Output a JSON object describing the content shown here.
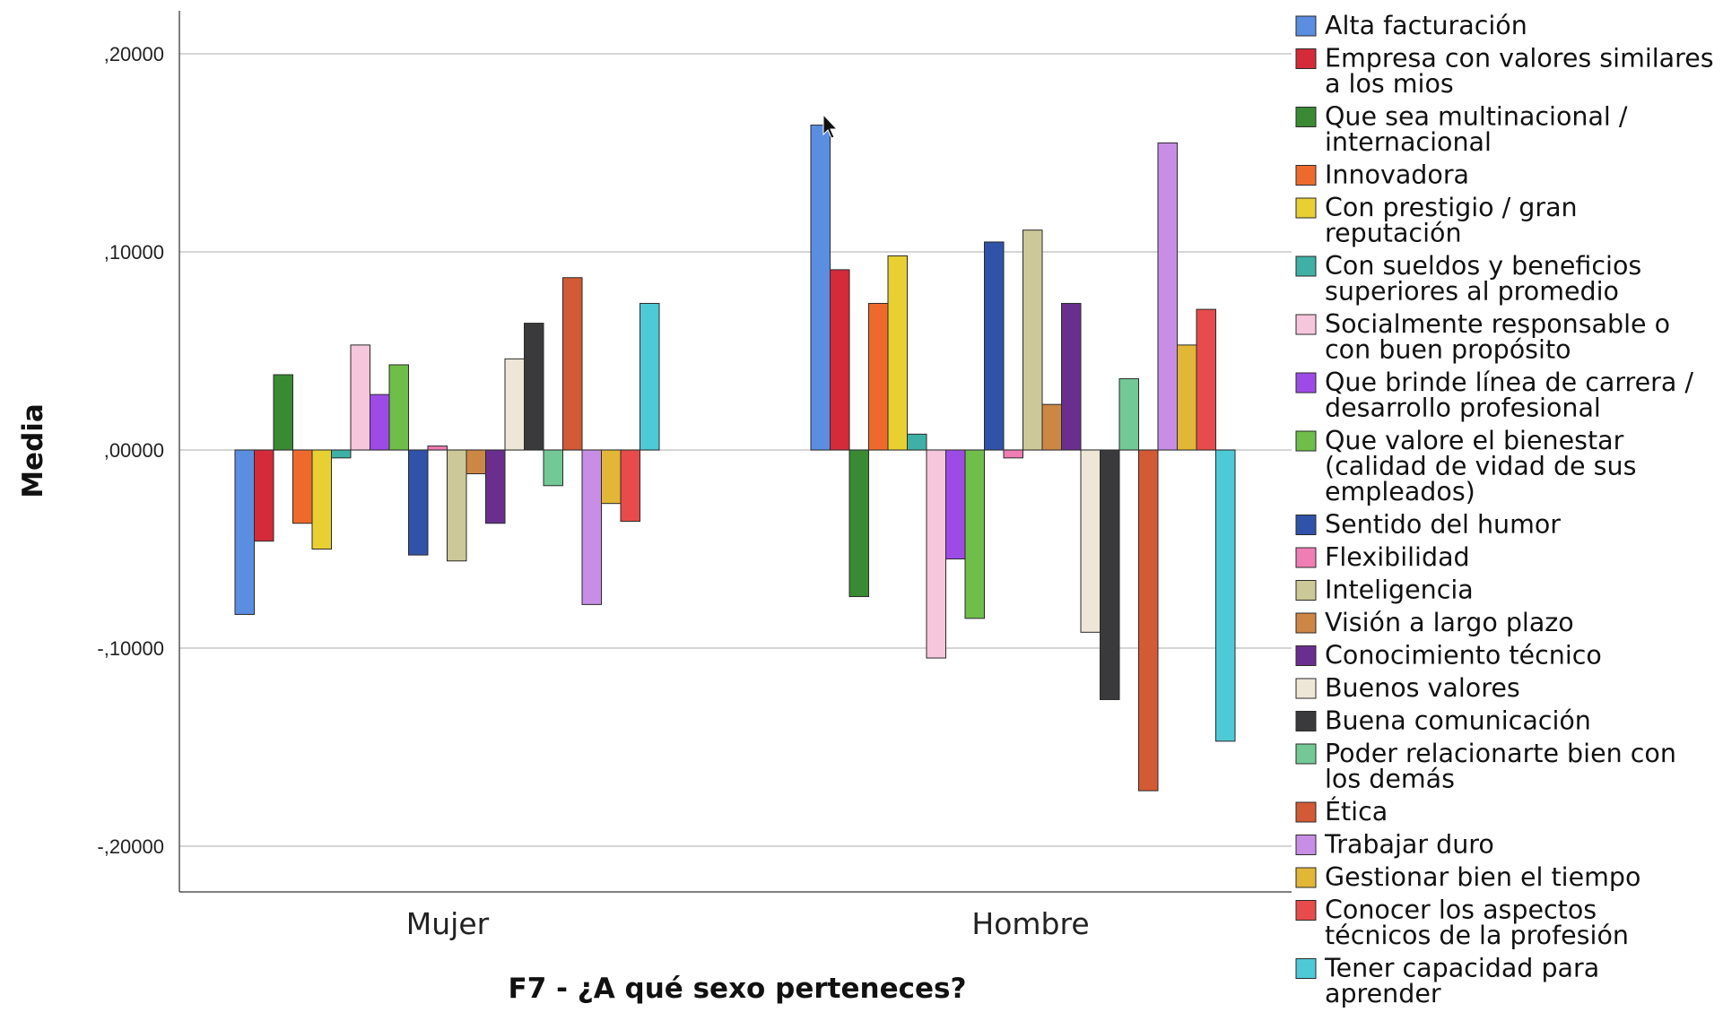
{
  "chart_data": {
    "type": "bar",
    "xlabel": "F7 - ¿A qué sexo perteneces?",
    "ylabel": "Media",
    "categories": [
      "Mujer",
      "Hombre"
    ],
    "ylim": [
      -0.22,
      0.22
    ],
    "yticks": [
      0.2,
      0.1,
      0.0,
      -0.1,
      -0.2
    ],
    "ytick_labels": [
      ",20000",
      ",10000",
      ",00000",
      "-,10000",
      "-,20000"
    ],
    "grid": true,
    "legend_position": "right",
    "series": [
      {
        "name": "Alta facturación",
        "color": "#5b8ee0",
        "values": [
          -0.083,
          0.164
        ]
      },
      {
        "name": "Empresa con valores similares a los mios",
        "color": "#d42a3a",
        "values": [
          -0.046,
          0.091
        ]
      },
      {
        "name": "Que sea multinacional / internacional",
        "color": "#3a8a34",
        "values": [
          0.038,
          -0.074
        ]
      },
      {
        "name": "Innovadora",
        "color": "#ee6a2c",
        "values": [
          -0.037,
          0.074
        ]
      },
      {
        "name": "Con prestigio / gran reputación",
        "color": "#e8d033",
        "values": [
          -0.05,
          0.098
        ]
      },
      {
        "name": "Con sueldos y beneficios superiores al promedio",
        "color": "#3fb0a6",
        "values": [
          -0.004,
          0.008
        ]
      },
      {
        "name": "Socialmente responsable o con buen propósito",
        "color": "#f6c6dc",
        "values": [
          0.053,
          -0.105
        ]
      },
      {
        "name": "Que brinde línea de carrera / desarrollo profesional",
        "color": "#9d4be6",
        "values": [
          0.028,
          -0.055
        ]
      },
      {
        "name": "Que valore el bienestar (calidad de vidad de sus empleados)",
        "color": "#6fbe4a",
        "values": [
          0.043,
          -0.085
        ]
      },
      {
        "name": "Sentido del humor",
        "color": "#3052a8",
        "values": [
          -0.053,
          0.105
        ]
      },
      {
        "name": "Flexibilidad",
        "color": "#ee7eb4",
        "values": [
          0.002,
          -0.004
        ]
      },
      {
        "name": "Inteligencia",
        "color": "#ccc898",
        "values": [
          -0.056,
          0.111
        ]
      },
      {
        "name": "Visión a largo plazo",
        "color": "#cc8745",
        "values": [
          -0.012,
          0.023
        ]
      },
      {
        "name": "Conocimiento técnico",
        "color": "#6a2f8e",
        "values": [
          -0.037,
          0.074
        ]
      },
      {
        "name": "Buenos valores",
        "color": "#eee6d6",
        "values": [
          0.046,
          -0.092
        ]
      },
      {
        "name": "Buena comunicación",
        "color": "#3a3a3c",
        "values": [
          0.064,
          -0.126
        ]
      },
      {
        "name": "Poder relacionarte bien con los demás",
        "color": "#72c996",
        "values": [
          -0.018,
          0.036
        ]
      },
      {
        "name": "Ética",
        "color": "#d25a34",
        "values": [
          0.087,
          -0.172
        ]
      },
      {
        "name": "Trabajar duro",
        "color": "#c88ee6",
        "values": [
          -0.078,
          0.155
        ]
      },
      {
        "name": "Gestionar bien el tiempo",
        "color": "#e2b636",
        "values": [
          -0.027,
          0.053
        ]
      },
      {
        "name": "Conocer los aspectos técnicos de la profesión",
        "color": "#e84b4b",
        "values": [
          -0.036,
          0.071
        ]
      },
      {
        "name": "Tener capacidad para aprender",
        "color": "#4ecad6",
        "values": [
          0.074,
          -0.147
        ]
      }
    ]
  },
  "legend": {
    "entries": [
      {
        "lines": [
          "Alta facturación"
        ]
      },
      {
        "lines": [
          "Empresa con valores similares",
          "a los mios"
        ]
      },
      {
        "lines": [
          "Que sea multinacional /",
          "internacional"
        ]
      },
      {
        "lines": [
          "Innovadora"
        ]
      },
      {
        "lines": [
          "Con prestigio / gran",
          "reputación"
        ]
      },
      {
        "lines": [
          "Con sueldos y beneficios",
          "superiores al promedio"
        ]
      },
      {
        "lines": [
          "Socialmente responsable o",
          "con buen propósito"
        ]
      },
      {
        "lines": [
          "Que brinde línea de carrera /",
          "desarrollo profesional"
        ]
      },
      {
        "lines": [
          "Que valore el bienestar",
          "(calidad de vidad de sus",
          "empleados)"
        ]
      },
      {
        "lines": [
          "Sentido del humor"
        ]
      },
      {
        "lines": [
          "Flexibilidad"
        ]
      },
      {
        "lines": [
          "Inteligencia"
        ]
      },
      {
        "lines": [
          "Visión a largo plazo"
        ]
      },
      {
        "lines": [
          "Conocimiento técnico"
        ]
      },
      {
        "lines": [
          "Buenos valores"
        ]
      },
      {
        "lines": [
          "Buena comunicación"
        ]
      },
      {
        "lines": [
          "Poder relacionarte bien con",
          "los demás"
        ]
      },
      {
        "lines": [
          "Ética"
        ]
      },
      {
        "lines": [
          "Trabajar duro"
        ]
      },
      {
        "lines": [
          "Gestionar bien el tiempo"
        ]
      },
      {
        "lines": [
          "Conocer los aspectos",
          "técnicos de la profesión"
        ]
      },
      {
        "lines": [
          "Tener capacidad para",
          "aprender"
        ]
      }
    ]
  }
}
